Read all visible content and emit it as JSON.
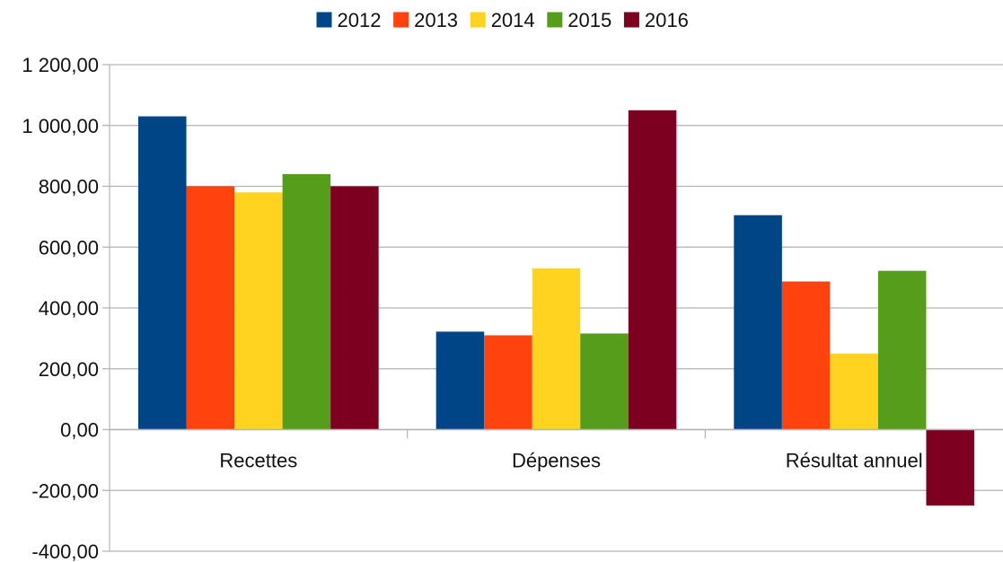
{
  "chart_data": {
    "type": "bar",
    "categories": [
      "Recettes",
      "Dépenses",
      "Résultat annuel"
    ],
    "series": [
      {
        "name": "2012",
        "color": "#004586",
        "values": [
          1030,
          322,
          705
        ]
      },
      {
        "name": "2013",
        "color": "#ff420e",
        "values": [
          800,
          310,
          487
        ]
      },
      {
        "name": "2014",
        "color": "#ffd320",
        "values": [
          780,
          530,
          250
        ]
      },
      {
        "name": "2015",
        "color": "#579d1c",
        "values": [
          840,
          316,
          522
        ]
      },
      {
        "name": "2016",
        "color": "#7e0021",
        "values": [
          800,
          1050,
          -250
        ]
      }
    ],
    "y_ticks": [
      "1 200,00",
      "1 000,00",
      "800,00",
      "600,00",
      "400,00",
      "200,00",
      "0,00",
      "-200,00",
      "-400,00"
    ],
    "ylim": [
      -400,
      1200
    ],
    "ytick_step": 200,
    "grid": true,
    "legend_position": "top-center",
    "title": "",
    "xlabel": "",
    "ylabel": ""
  }
}
